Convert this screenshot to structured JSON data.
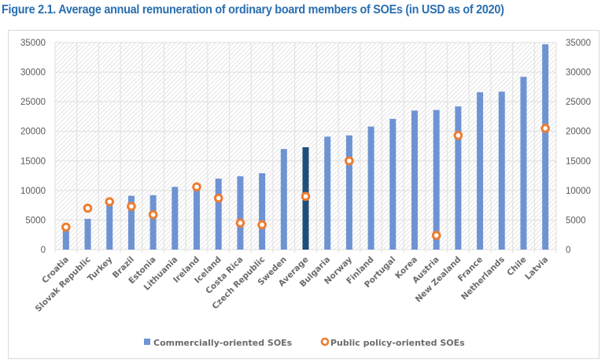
{
  "chart_data": {
    "type": "bar",
    "title": "Figure 2.1. Average annual remuneration of ordinary board members of SOEs (in USD as of 2020)",
    "xlabel": "",
    "ylabel": "",
    "ylim": [
      0,
      35000
    ],
    "yticks": [
      0,
      5000,
      10000,
      15000,
      20000,
      25000,
      30000,
      35000
    ],
    "ytick_labels": [
      "0",
      "5000",
      "10000",
      "15000",
      "20000",
      "25000",
      "30000",
      "35000"
    ],
    "secondary_yaxis": true,
    "grid": true,
    "legend_position": "bottom",
    "categories": [
      "Croatia",
      "Slovak Republic",
      "Turkey",
      "Brazil",
      "Estonia",
      "Lithuania",
      "Ireland",
      "Iceland",
      "Costa Rica",
      "Czech Republic",
      "Sweden",
      "Average",
      "Bulgaria",
      "Norway",
      "Finland",
      "Portugal",
      "Korea",
      "Austria",
      "New Zealand",
      "France",
      "Netherlands",
      "Chile",
      "Latvia"
    ],
    "highlight_category": "Average",
    "series": [
      {
        "name": "Commercially-oriented SOEs",
        "kind": "bar",
        "color": "#6e93d3",
        "highlight_color": "#1f4e79",
        "values": [
          3700,
          5200,
          8000,
          9100,
          9200,
          10600,
          10400,
          12000,
          12400,
          12900,
          17000,
          17300,
          19100,
          19300,
          20800,
          22100,
          23500,
          23600,
          24200,
          26600,
          26700,
          29200,
          34700
        ]
      },
      {
        "name": "Public policy-oriented SOEs",
        "kind": "marker",
        "color": "#ed7d31",
        "values": [
          3800,
          7000,
          8100,
          7300,
          5900,
          null,
          10600,
          8700,
          4500,
          4200,
          null,
          9000,
          null,
          15000,
          null,
          null,
          null,
          2400,
          19300,
          null,
          null,
          null,
          20500
        ]
      }
    ]
  }
}
